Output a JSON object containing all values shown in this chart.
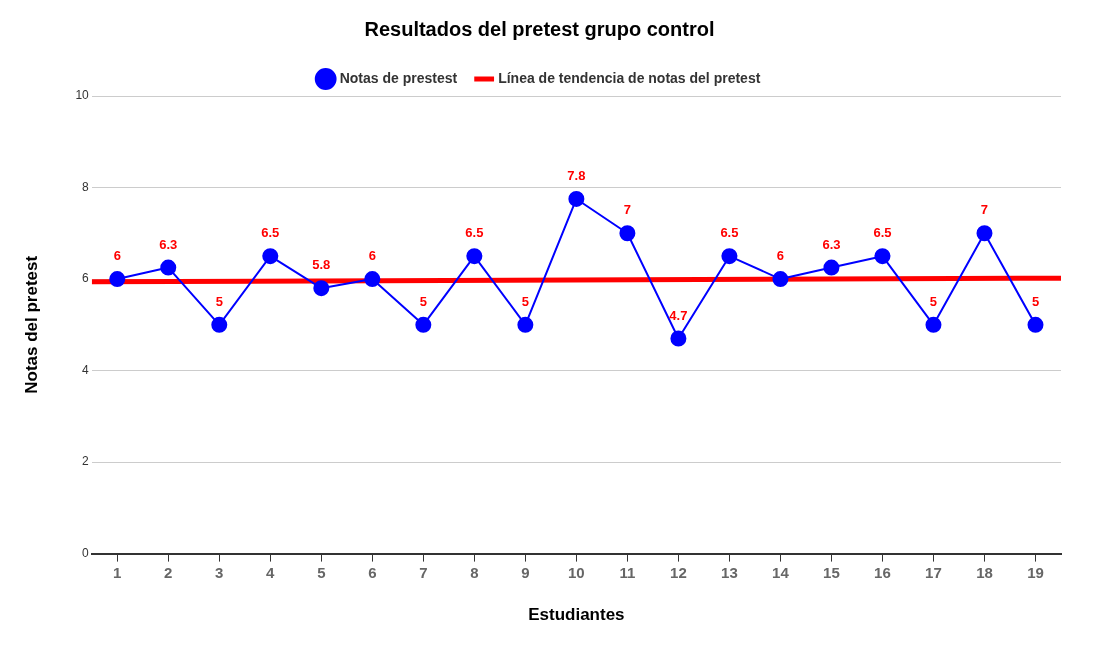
{
  "chart_data": {
    "type": "line",
    "title": "Resultados del pretest grupo control",
    "xlabel": "Estudiantes",
    "ylabel": "Notas del pretest",
    "x": [
      1,
      2,
      3,
      4,
      5,
      6,
      7,
      8,
      9,
      10,
      11,
      12,
      13,
      14,
      15,
      16,
      17,
      18,
      19
    ],
    "xlim": [
      0.5,
      19.5
    ],
    "xticks": [
      1,
      2,
      3,
      4,
      5,
      6,
      7,
      8,
      9,
      10,
      11,
      12,
      13,
      14,
      15,
      16,
      17,
      18,
      19
    ],
    "ylim": [
      0,
      10
    ],
    "yticks": [
      0,
      2,
      4,
      6,
      8,
      10
    ],
    "grid": "y",
    "legend": "top",
    "series": [
      {
        "name": "Notas de prestest",
        "color": "#0000ff",
        "marker": "circle",
        "values": [
          6,
          6.25,
          5,
          6.5,
          5.8,
          6,
          5,
          6.5,
          5,
          7.75,
          7,
          4.7,
          6.5,
          6,
          6.25,
          6.5,
          5,
          7,
          5
        ],
        "value_labels": [
          "6",
          "6.3",
          "5",
          "6.5",
          "5.8",
          "6",
          "5",
          "6.5",
          "5",
          "7.8",
          "7",
          "4.7",
          "6.5",
          "6",
          "6.3",
          "6.5",
          "5",
          "7",
          "5"
        ]
      },
      {
        "name": "Línea de tendencia de notas del pretest",
        "color": "#ff0000",
        "marker": "none",
        "x": [
          0.5,
          19.5
        ],
        "values": [
          5.94,
          6.02
        ]
      }
    ]
  }
}
